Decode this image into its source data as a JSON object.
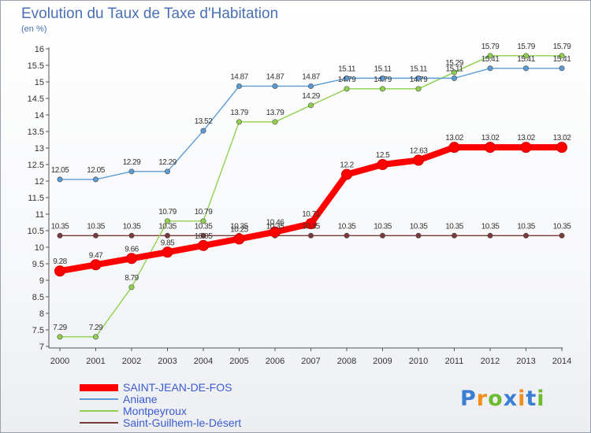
{
  "chart_data": {
    "type": "line",
    "title": "Evolution du Taux de Taxe d'Habitation",
    "subtitle": "(en %)",
    "x": [
      "2000",
      "2001",
      "2002",
      "2003",
      "2004",
      "2005",
      "2006",
      "2007",
      "2008",
      "2009",
      "2010",
      "2011",
      "2012",
      "2013",
      "2014"
    ],
    "ylim": [
      7,
      16
    ],
    "yticks": [
      "7",
      "7.5",
      "8",
      "8.5",
      "9",
      "9.5",
      "10",
      "10.5",
      "11",
      "11.5",
      "12",
      "12.5",
      "13",
      "13.5",
      "14",
      "14.5",
      "15",
      "15.5",
      "16"
    ],
    "grid": false,
    "legend_position": "bottom-left",
    "series": [
      {
        "name": "SAINT-JEAN-DE-FOS",
        "color": "#ff0000",
        "values": [
          9.28,
          9.47,
          9.66,
          9.85,
          10.05,
          10.25,
          10.46,
          10.71,
          12.2,
          12.5,
          12.63,
          13.02,
          13.02,
          13.02,
          13.02
        ],
        "labels": [
          "9.28",
          "9.47",
          "9.66",
          "9.85",
          "10.05",
          "10.25",
          "10.46",
          "10.71",
          "12.2",
          "12.5",
          "12.63",
          "13.02",
          "13.02",
          "13.02",
          "13.02"
        ]
      },
      {
        "name": "Aniane",
        "color": "#5b9bd5",
        "values": [
          12.05,
          12.05,
          12.29,
          12.29,
          13.52,
          14.87,
          14.87,
          14.87,
          15.11,
          15.11,
          15.11,
          15.11,
          15.41,
          15.41,
          15.41
        ],
        "labels": [
          "12.05",
          "12.05",
          "12.29",
          "12.29",
          "13.52",
          "14.87",
          "14.87",
          "14.87",
          "15.11",
          "15.11",
          "15.11",
          "15.11",
          "15.41",
          "15.41",
          "15.41"
        ]
      },
      {
        "name": "Montpeyroux",
        "color": "#8fd14f",
        "values": [
          7.29,
          7.29,
          8.79,
          10.79,
          10.79,
          13.79,
          13.79,
          14.29,
          14.79,
          14.79,
          14.79,
          15.29,
          15.79,
          15.79,
          15.79
        ],
        "labels": [
          "7.29",
          "7.29",
          "8.79",
          "10.79",
          "10.79",
          "13.79",
          "13.79",
          "14.29",
          "14.79",
          "14.79",
          "14.79",
          "15.29",
          "15.79",
          "15.79",
          "15.79"
        ]
      },
      {
        "name": "Saint-Guilhem-le-Désert",
        "color": "#7a3a3a",
        "values": [
          10.35,
          10.35,
          10.35,
          10.35,
          10.35,
          10.35,
          10.35,
          10.35,
          10.35,
          10.35,
          10.35,
          10.35,
          10.35,
          10.35,
          10.35
        ],
        "labels": [
          "10.35",
          "10.35",
          "10.35",
          "10.35",
          "10.35",
          "10.35",
          "10.35",
          "10.35",
          "10.35",
          "10.35",
          "10.35",
          "10.35",
          "10.35",
          "10.35",
          "10.35"
        ]
      }
    ]
  },
  "logo": {
    "letters": [
      "P",
      "r",
      "o",
      "x",
      "i",
      "t",
      "i"
    ],
    "colors": [
      "#3b7fd4",
      "#f28c1a",
      "#6dbb2e",
      "#3b7fd4",
      "#f28c1a",
      "#3b7fd4",
      "#6dbb2e"
    ]
  }
}
